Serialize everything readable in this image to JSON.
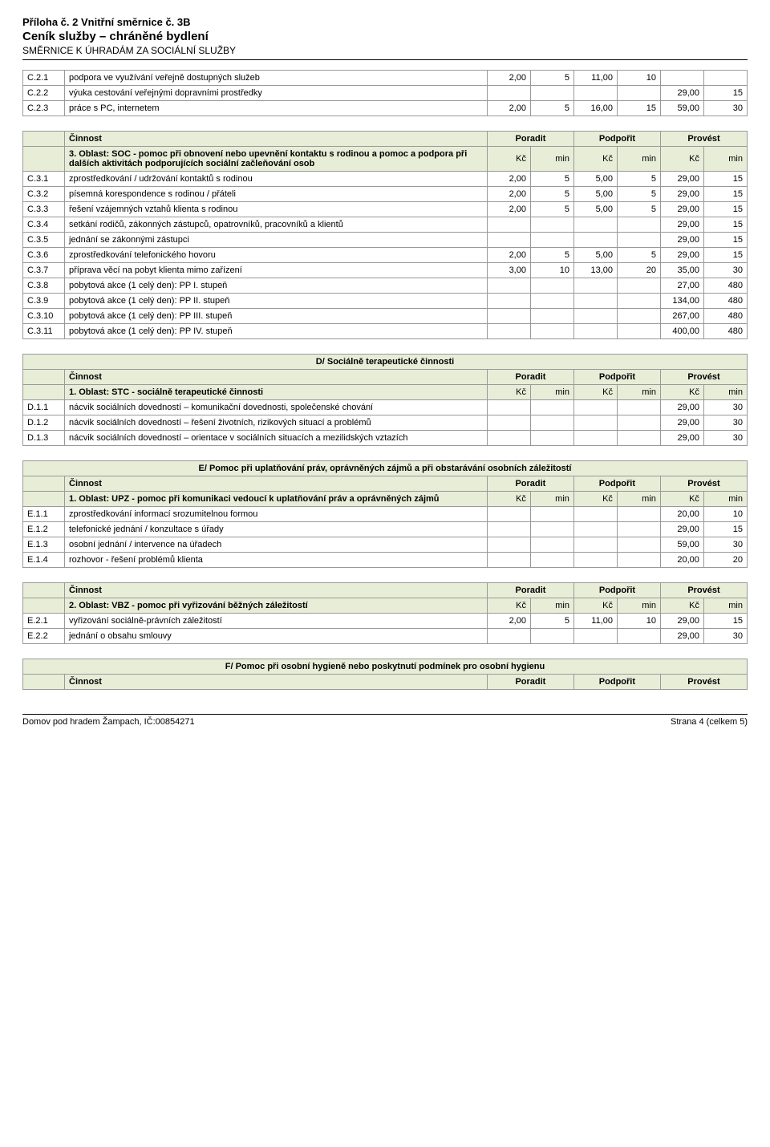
{
  "header": {
    "line1": "Příloha č. 2 Vnitřní směrnice č. 3B",
    "line2": "Ceník služby – chráněné bydlení",
    "line3": "SMĚRNICE K ÚHRADÁM ZA SOCIÁLNÍ SLUŽBY"
  },
  "units": {
    "kc": "Kč",
    "min": "min"
  },
  "pair_headers": {
    "poradit": "Poradit",
    "podporit": "Podpořit",
    "provest": "Provést"
  },
  "activity_label": "Činnost",
  "tableA_rows": [
    {
      "code": "C.2.1",
      "desc": "podpora ve využívání veřejně dostupných služeb",
      "v": [
        "2,00",
        "5",
        "11,00",
        "10",
        "",
        ""
      ]
    },
    {
      "code": "C.2.2",
      "desc": "výuka cestování veřejnými dopravními prostředky",
      "v": [
        "",
        "",
        "",
        "",
        "29,00",
        "15"
      ]
    },
    {
      "code": "C.2.3",
      "desc": "práce s PC, internetem",
      "v": [
        "2,00",
        "5",
        "16,00",
        "15",
        "59,00",
        "30"
      ]
    }
  ],
  "tableB": {
    "oblast": "3. Oblast: SOC - pomoc při obnovení nebo upevnění kontaktu s rodinou a pomoc a podpora při dalších aktivitách podporujících sociální začleňování osob",
    "rows": [
      {
        "code": "C.3.1",
        "desc": "zprostředkování / udržování kontaktů s rodinou",
        "v": [
          "2,00",
          "5",
          "5,00",
          "5",
          "29,00",
          "15"
        ]
      },
      {
        "code": "C.3.2",
        "desc": "písemná korespondence s rodinou / přáteli",
        "v": [
          "2,00",
          "5",
          "5,00",
          "5",
          "29,00",
          "15"
        ]
      },
      {
        "code": "C.3.3",
        "desc": "řešení vzájemných vztahů klienta s rodinou",
        "v": [
          "2,00",
          "5",
          "5,00",
          "5",
          "29,00",
          "15"
        ]
      },
      {
        "code": "C.3.4",
        "desc": "setkání rodičů, zákonných zástupců, opatrovníků, pracovníků a klientů",
        "v": [
          "",
          "",
          "",
          "",
          "29,00",
          "15"
        ]
      },
      {
        "code": "C.3.5",
        "desc": "jednání se zákonnými zástupci",
        "v": [
          "",
          "",
          "",
          "",
          "29,00",
          "15"
        ]
      },
      {
        "code": "C.3.6",
        "desc": "zprostředkování telefonického hovoru",
        "v": [
          "2,00",
          "5",
          "5,00",
          "5",
          "29,00",
          "15"
        ]
      },
      {
        "code": "C.3.7",
        "desc": "příprava věcí na pobyt klienta mimo zařízení",
        "v": [
          "3,00",
          "10",
          "13,00",
          "20",
          "35,00",
          "30"
        ]
      },
      {
        "code": "C.3.8",
        "desc": "pobytová akce (1 celý den): PP I. stupeň",
        "v": [
          "",
          "",
          "",
          "",
          "27,00",
          "480"
        ]
      },
      {
        "code": "C.3.9",
        "desc": "pobytová akce (1 celý den): PP II. stupeň",
        "v": [
          "",
          "",
          "",
          "",
          "134,00",
          "480"
        ]
      },
      {
        "code": "C.3.10",
        "desc": "pobytová akce (1 celý den): PP III. stupeň",
        "v": [
          "",
          "",
          "",
          "",
          "267,00",
          "480"
        ]
      },
      {
        "code": "C.3.11",
        "desc": "pobytová akce (1 celý den): PP IV. stupeň",
        "v": [
          "",
          "",
          "",
          "",
          "400,00",
          "480"
        ]
      }
    ]
  },
  "tableD": {
    "section": "D/ Sociálně terapeutické činnosti",
    "oblast": "1. Oblast: STC - sociálně terapeutické činnosti",
    "rows": [
      {
        "code": "D.1.1",
        "desc": "nácvik sociálních dovedností – komunikační dovednosti, společenské chování",
        "v": [
          "",
          "",
          "",
          "",
          "29,00",
          "30"
        ]
      },
      {
        "code": "D.1.2",
        "desc": "nácvik sociálních dovedností – řešení životních, rizikových situací a problémů",
        "v": [
          "",
          "",
          "",
          "",
          "29,00",
          "30"
        ]
      },
      {
        "code": "D.1.3",
        "desc": "nácvik sociálních dovedností – orientace v sociálních situacích a mezilidských vztazích",
        "v": [
          "",
          "",
          "",
          "",
          "29,00",
          "30"
        ]
      }
    ]
  },
  "tableE": {
    "section": "E/ Pomoc při uplatňování práv, oprávněných zájmů a při obstarávání osobních záležitostí",
    "oblast": "1. Oblast: UPZ - pomoc při komunikaci vedoucí k uplatňování práv a oprávněných zájmů",
    "rows": [
      {
        "code": "E.1.1",
        "desc": "zprostředkování informací srozumitelnou formou",
        "v": [
          "",
          "",
          "",
          "",
          "20,00",
          "10"
        ]
      },
      {
        "code": "E.1.2",
        "desc": "telefonické jednání / konzultace s úřady",
        "v": [
          "",
          "",
          "",
          "",
          "29,00",
          "15"
        ]
      },
      {
        "code": "E.1.3",
        "desc": "osobní jednání / intervence na úřadech",
        "v": [
          "",
          "",
          "",
          "",
          "59,00",
          "30"
        ]
      },
      {
        "code": "E.1.4",
        "desc": "rozhovor - řešení problémů klienta",
        "v": [
          "",
          "",
          "",
          "",
          "20,00",
          "20"
        ]
      }
    ]
  },
  "tableE2": {
    "oblast": "2. Oblast: VBZ - pomoc při vyřizování běžných záležitostí",
    "rows": [
      {
        "code": "E.2.1",
        "desc": "vyřizování sociálně-právních záležitostí",
        "v": [
          "2,00",
          "5",
          "11,00",
          "10",
          "29,00",
          "15"
        ]
      },
      {
        "code": "E.2.2",
        "desc": "jednání o obsahu smlouvy",
        "v": [
          "",
          "",
          "",
          "",
          "29,00",
          "30"
        ]
      }
    ]
  },
  "tableF": {
    "section": "F/ Pomoc při osobní hygieně nebo poskytnutí podmínek pro osobní hygienu"
  },
  "footer": {
    "left": "Domov pod hradem Žampach, IČ:00854271",
    "right": "Strana 4 (celkem 5)"
  },
  "colors": {
    "header_bg": "#e8edd8",
    "border": "#999999"
  }
}
